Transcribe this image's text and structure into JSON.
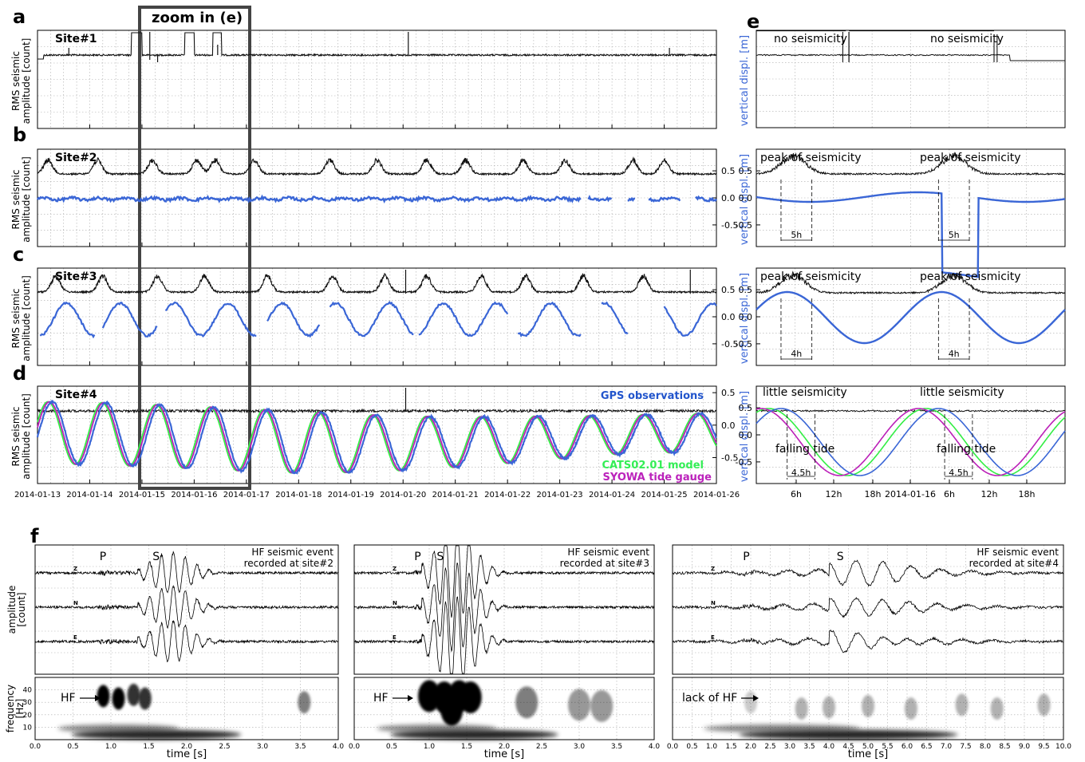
{
  "panel_letters": {
    "a": "a",
    "b": "b",
    "c": "c",
    "d": "d",
    "e": "e",
    "f": "f"
  },
  "zoom_label": "zoom in (e)",
  "ylabels": {
    "left_line1": "RMS  seismic",
    "left_line2": "amplitude [count]",
    "right": "vertical displ. [m]",
    "f_wave_line1": "amplitude",
    "f_wave_line2": "[count]",
    "f_spec_line1": "frequency",
    "f_spec_line2": "[Hz]"
  },
  "colors": {
    "seismic": "#111111",
    "gps": "#3a66d6",
    "model": "#33ee44",
    "gauge": "#bb1fb8",
    "zoom_box": "#444444",
    "legend_gps": "#2255cc",
    "legend_model": "#33ee55",
    "legend_gauge": "#bb22bb"
  },
  "chart_data": [
    {
      "type": "line",
      "panel": "a",
      "site": "Site#1",
      "x_ticks": [
        "2014-01-13",
        "2014-01-14",
        "2014-01-15",
        "2014-01-16",
        "2014-01-17",
        "2014-01-18",
        "2014-01-19",
        "2014-01-20",
        "2014-01-21",
        "2014-01-22",
        "2014-01-23",
        "2014-01-24",
        "2014-01-25",
        "2014-01-26"
      ],
      "series": [
        {
          "type": "seismic rms",
          "baseline": 0.5,
          "gaps": [
            [
              0.0,
              0.12
            ],
            [
              1.8,
              2.0
            ],
            [
              2.82,
              3.0
            ],
            [
              3.36,
              3.52
            ]
          ]
        }
      ]
    },
    {
      "type": "line",
      "panel": "b",
      "site": "Site#2",
      "y_ticks": [
        0.5,
        0.0,
        -0.5
      ],
      "ylim": [
        -0.9,
        0.9
      ],
      "seismic_peaks_days": [
        0.2,
        1.15,
        2.2,
        3.05,
        3.4,
        4.15,
        5.6,
        6.5,
        7.45,
        8.2,
        9.3,
        10.1,
        11.4,
        12.0
      ]
    },
    {
      "type": "line",
      "panel": "c",
      "site": "Site#3",
      "y_ticks": [
        0.5,
        0.0,
        -0.5
      ],
      "ylim": [
        -0.9,
        0.9
      ],
      "seismic_peaks_days": [
        0.35,
        1.25,
        2.3,
        3.2,
        4.4,
        5.65,
        6.65,
        7.45,
        8.5,
        9.35,
        10.45,
        11.6
      ]
    },
    {
      "type": "line",
      "panel": "d",
      "site": "Site#4",
      "y_ticks": [
        0.5,
        0.0,
        -0.5
      ],
      "ylim": [
        -0.9,
        0.6
      ],
      "legend": [
        "GPS observations",
        "CATS02.01 model",
        "SYOWA tide gauge"
      ],
      "tide_amplitude_m": [
        0.8,
        0.5
      ]
    },
    {
      "type": "line",
      "panel": "e",
      "x_ticks": [
        "6h",
        "12h",
        "18h",
        "2014-01-16",
        "6h",
        "12h",
        "18h"
      ],
      "y_ticks": [
        0.5,
        0.0,
        -0.5
      ],
      "annotations": {
        "row1": [
          "no seismicity",
          "no seismicity"
        ],
        "row2": [
          "peak of seismicity",
          "peak of seismicity"
        ],
        "row2_dur": [
          "5h",
          "5h"
        ],
        "row3": [
          "peak of seismicity",
          "peak of seismicity"
        ],
        "row3_dur": [
          "4h",
          "4h"
        ],
        "row4": [
          "little seismicity",
          "little seismicity"
        ],
        "row4_tide": [
          "falling tide",
          "falling tide"
        ],
        "row4_dur": [
          "4.5h",
          "4.5h"
        ]
      }
    },
    {
      "type": "line",
      "panel": "f1",
      "title_line1": "HF seismic event",
      "title_line2": "recorded at site#2",
      "phases": [
        "P",
        "S"
      ],
      "components": [
        "Z",
        "N",
        "E"
      ],
      "hf_label": "HF",
      "xlim": [
        0.0,
        4.0
      ],
      "x_ticks": [
        "0.0",
        "0.5",
        "1.0",
        "1.5",
        "2.0",
        "2.5",
        "3.0",
        "3.5",
        "4.0"
      ],
      "y_ticks": [
        "40",
        "30",
        "20",
        "10"
      ],
      "xlabel": "time [s]"
    },
    {
      "type": "line",
      "panel": "f2",
      "title_line1": "HF seismic event",
      "title_line2": "recorded at site#3",
      "phases": [
        "P",
        "S"
      ],
      "components": [
        "Z",
        "N",
        "E"
      ],
      "hf_label": "HF",
      "xlim": [
        0.0,
        4.0
      ],
      "x_ticks": [
        "0.0",
        "0.5",
        "1.0",
        "1.5",
        "2.0",
        "2.5",
        "3.0",
        "3.5",
        "4.0"
      ],
      "xlabel": "time [s]"
    },
    {
      "type": "line",
      "panel": "f3",
      "title_line1": "HF seismic event",
      "title_line2": "recorded at site#4",
      "phases": [
        "P",
        "S"
      ],
      "components": [
        "Z",
        "N",
        "E"
      ],
      "hf_label": "lack of HF",
      "xlim": [
        0.0,
        10.0
      ],
      "x_ticks": [
        "0.0",
        "0.5",
        "1.0",
        "1.5",
        "2.0",
        "2.5",
        "3.0",
        "3.5",
        "4.0",
        "4.5",
        "5.0",
        "5.5",
        "6.0",
        "6.5",
        "7.0",
        "7.5",
        "8.0",
        "8.5",
        "9.0",
        "9.5",
        "10.0"
      ],
      "xlabel": "time [s]"
    }
  ]
}
